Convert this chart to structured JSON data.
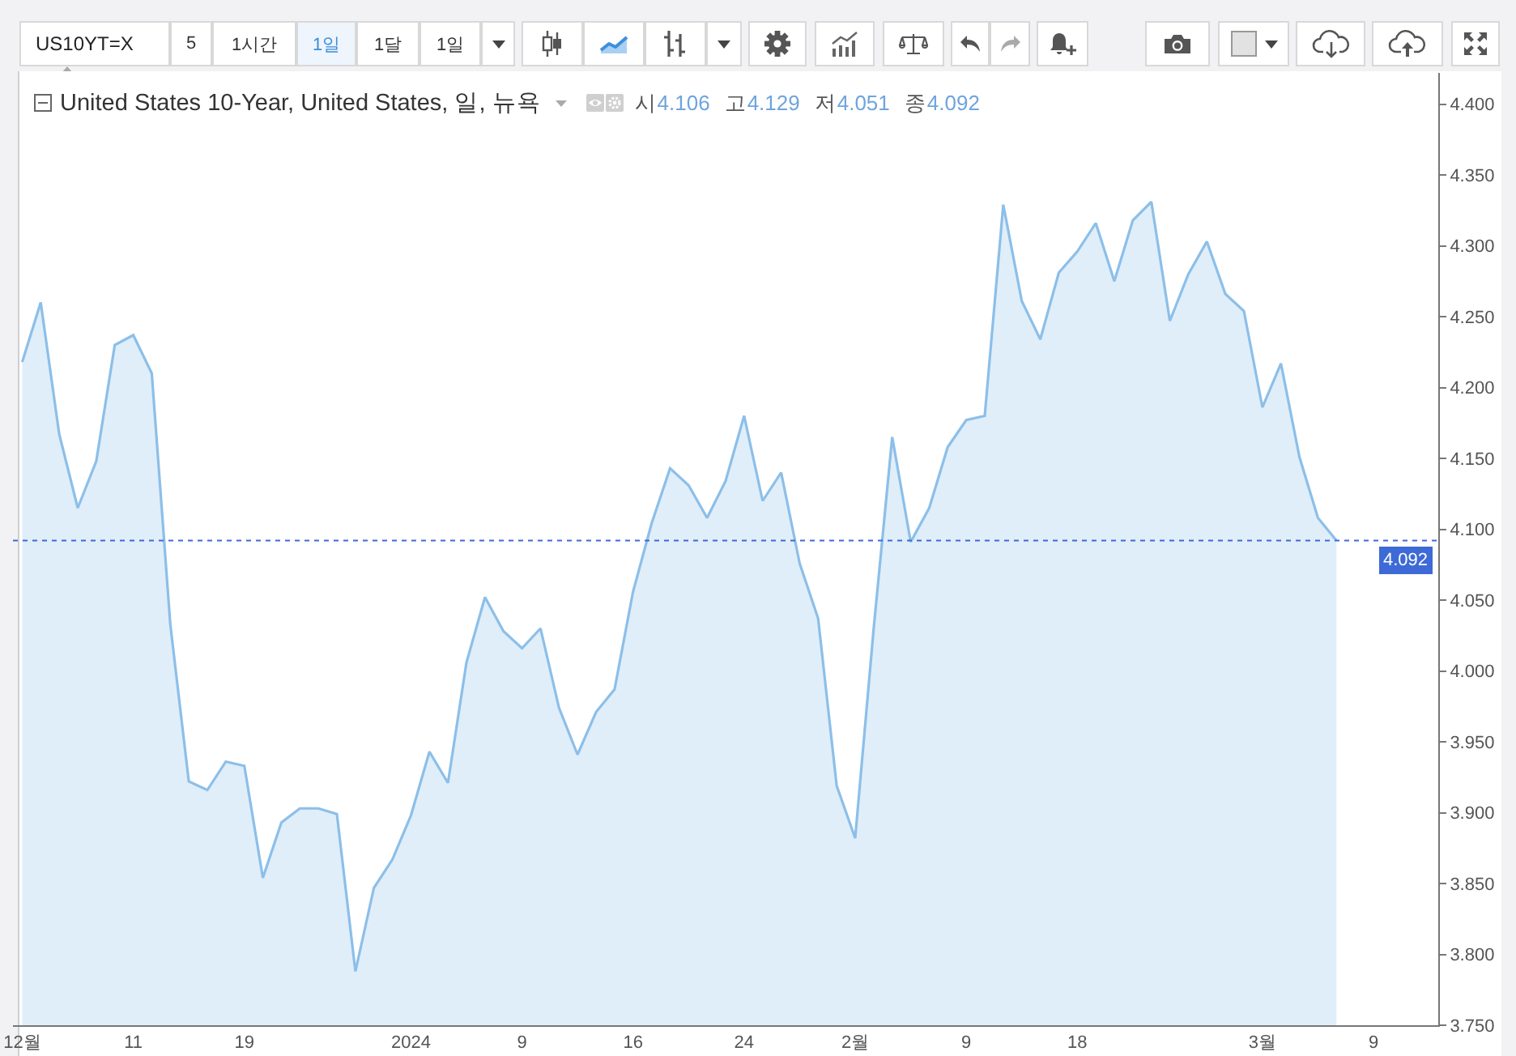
{
  "chart_data": [
    {
      "type": "other",
      "annotations": [
        "US10YT=X",
        "5",
        "1시간",
        "1일",
        "1달",
        "1일"
      ]
    },
    {
      "type": "area",
      "title": "United States 10-Year, United States, 일, 뉴욕",
      "annotations": [
        "시4.106",
        "고4.129",
        "저4.051",
        "종4.092"
      ],
      "categories": [
        "12월",
        null,
        null,
        null,
        null,
        null,
        "11",
        null,
        null,
        null,
        null,
        null,
        "19",
        null,
        null,
        null,
        null,
        null,
        null,
        null,
        null,
        "2024",
        null,
        null,
        null,
        null,
        null,
        "9",
        null,
        null,
        null,
        null,
        null,
        "16",
        null,
        null,
        null,
        null,
        null,
        "24",
        null,
        null,
        null,
        null,
        null,
        "2월",
        null,
        null,
        null,
        null,
        null,
        "9",
        null,
        null,
        null,
        null,
        null,
        "18",
        null,
        null,
        null,
        null,
        null,
        null,
        null,
        null,
        null,
        "3월",
        null,
        null,
        null,
        null,
        null,
        "9",
        null,
        null,
        null
      ],
      "series": [
        {
          "color": "#8cbfe9",
          "values": [
            4.218,
            4.26,
            4.167,
            4.115,
            4.148,
            4.23,
            4.237,
            4.21,
            4.033,
            3.922,
            3.916,
            3.936,
            3.933,
            3.854,
            3.893,
            3.903,
            3.903,
            3.899,
            3.788,
            3.847,
            3.867,
            3.898,
            3.943,
            3.921,
            4.006,
            4.052,
            4.028,
            4.016,
            4.03,
            3.974,
            3.941,
            3.971,
            3.987,
            4.056,
            4.104,
            4.143,
            4.131,
            4.108,
            4.134,
            4.18,
            4.12,
            4.14,
            4.076,
            4.037,
            3.919,
            3.882,
            4.03,
            4.165,
            4.091,
            4.115,
            4.158,
            4.177,
            4.18,
            4.329,
            4.261,
            4.234,
            4.281,
            4.296,
            4.316,
            4.275,
            4.318,
            4.331,
            4.247,
            4.28,
            4.303,
            4.266,
            4.254,
            4.186,
            4.217,
            4.151,
            4.108,
            4.092,
            null,
            null,
            null,
            null,
            null
          ]
        }
      ],
      "ylim": [
        3.75,
        4.422
      ],
      "yticks": [
        {
          "value": 3.75,
          "label": "3.750"
        },
        {
          "value": 3.8,
          "label": "3.800"
        },
        {
          "value": 3.85,
          "label": "3.850"
        },
        {
          "value": 3.9,
          "label": "3.900"
        },
        {
          "value": 3.95,
          "label": "3.950"
        },
        {
          "value": 4.0,
          "label": "4.000"
        },
        {
          "value": 4.05,
          "label": "4.050"
        },
        {
          "value": 4.1,
          "label": "4.100"
        },
        {
          "value": 4.15,
          "label": "4.150"
        },
        {
          "value": 4.2,
          "label": "4.200"
        },
        {
          "value": 4.25,
          "label": "4.250"
        },
        {
          "value": 4.3,
          "label": "4.300"
        },
        {
          "value": 4.35,
          "label": "4.350"
        },
        {
          "value": 4.4,
          "label": "4.400"
        }
      ],
      "ref_lines": [
        {
          "axis": "y",
          "value": 4.092,
          "label": "4.092",
          "color": "#3d6ad6",
          "line_style": "dotted"
        }
      ]
    }
  ]
}
